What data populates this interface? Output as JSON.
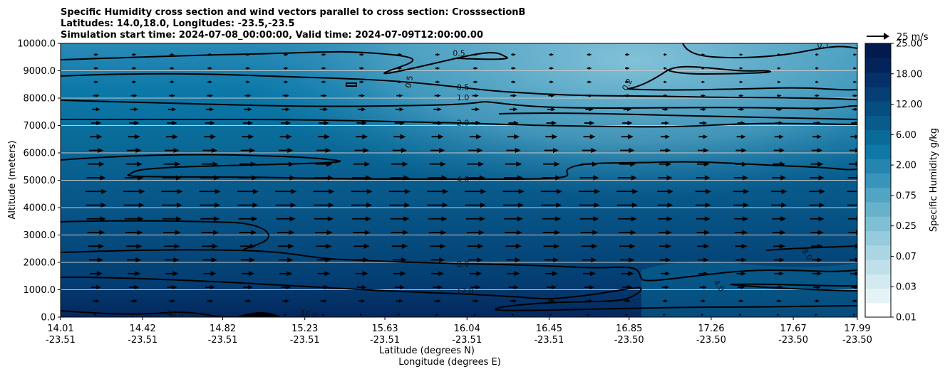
{
  "title_lines": [
    "Specific Humidity cross section and wind vectors parallel to cross section: CrosssectionB",
    "Latitudes: 14.0,18.0, Longitudes: -23.5,-23.5",
    "Simulation start time: 2024-07-08_00:00:00, Valid time: 2024-07-09T12:00:00.00"
  ],
  "chart_data": {
    "type": "contour",
    "title": "Specific Humidity cross section and wind vectors parallel to cross section: CrosssectionB",
    "ylabel": "Altitude (meters)",
    "xlabel_lat": "Latitude (degrees N)",
    "xlabel_lon": "Longitude (degrees E)",
    "ylim": [
      0,
      10000
    ],
    "xlim": [
      14.01,
      17.99
    ],
    "y_ticks": [
      "0.0",
      "1000.0",
      "2000.0",
      "3000.0",
      "4000.0",
      "5000.0",
      "6000.0",
      "7000.0",
      "8000.0",
      "9000.0",
      "10000.0"
    ],
    "x_ticks": [
      {
        "lat": "14.01",
        "lon": "-23.51",
        "v": 14.01
      },
      {
        "lat": "14.42",
        "lon": "-23.51",
        "v": 14.42
      },
      {
        "lat": "14.82",
        "lon": "-23.51",
        "v": 14.82
      },
      {
        "lat": "15.23",
        "lon": "-23.51",
        "v": 15.23
      },
      {
        "lat": "15.63",
        "lon": "-23.51",
        "v": 15.63
      },
      {
        "lat": "16.04",
        "lon": "-23.51",
        "v": 16.04
      },
      {
        "lat": "16.45",
        "lon": "-23.51",
        "v": 16.45
      },
      {
        "lat": "16.85",
        "lon": "-23.50",
        "v": 16.85
      },
      {
        "lat": "17.26",
        "lon": "-23.50",
        "v": 17.26
      },
      {
        "lat": "17.67",
        "lon": "-23.50",
        "v": 17.67
      },
      {
        "lat": "17.99",
        "lon": "-23.50",
        "v": 17.99
      }
    ],
    "colorbar": {
      "label": "Specific Humidity g/kg",
      "levels": [
        0.01,
        0.02,
        0.03,
        0.05,
        0.07,
        0.1,
        0.25,
        0.5,
        0.75,
        1.0,
        2.0,
        4.0,
        6.0,
        8.0,
        12.0,
        16.0,
        18.0,
        20.0,
        25.0
      ],
      "tick_labels": [
        "0.01",
        "0.03",
        "0.07",
        "0.25",
        "0.75",
        "2.00",
        "6.00",
        "12.00",
        "18.00",
        "25.00"
      ],
      "colors": [
        "#ffffff",
        "#e6f3f6",
        "#d2eaf0",
        "#bfe0ea",
        "#aad6e3",
        "#95cbdc",
        "#7fbfd3",
        "#68b1cb",
        "#52a4c3",
        "#3a94ba",
        "#2486b0",
        "#0e78a6",
        "#0a6a98",
        "#085b8c",
        "#064d80",
        "#053f73",
        "#043167",
        "#03245a",
        "#021a4e"
      ]
    },
    "contour_labels": [
      {
        "text": "0.5",
        "lat": 16.0,
        "alt": 9650
      },
      {
        "text": "0.5",
        "lat": 15.75,
        "alt": 8600,
        "rotate": -80
      },
      {
        "text": "0.5",
        "lat": 16.02,
        "alt": 8400
      },
      {
        "text": "1.0",
        "lat": 16.02,
        "alt": 8030
      },
      {
        "text": "0.2",
        "lat": 16.84,
        "alt": 8500,
        "rotate": -60
      },
      {
        "text": "0.1",
        "lat": 17.82,
        "alt": 9950
      },
      {
        "text": "2.0",
        "lat": 16.02,
        "alt": 7100
      },
      {
        "text": "4.0",
        "lat": 16.02,
        "alt": 5050
      },
      {
        "text": "8.0",
        "lat": 16.02,
        "alt": 1950
      },
      {
        "text": "8.0",
        "lat": 17.74,
        "alt": 2300,
        "rotate": 60
      },
      {
        "text": "12.0",
        "lat": 16.03,
        "alt": 950
      },
      {
        "text": "4.0",
        "lat": 17.3,
        "alt": 1150,
        "rotate": 55
      },
      {
        "text": "16.0",
        "lat": 14.58,
        "alt": 120,
        "rotate": 15
      },
      {
        "text": "16.0",
        "lat": 15.25,
        "alt": 100,
        "rotate": 15
      }
    ],
    "wind_vectors": {
      "reference": "25 m/s",
      "direction": "parallel to cross section (eastward component)"
    }
  }
}
